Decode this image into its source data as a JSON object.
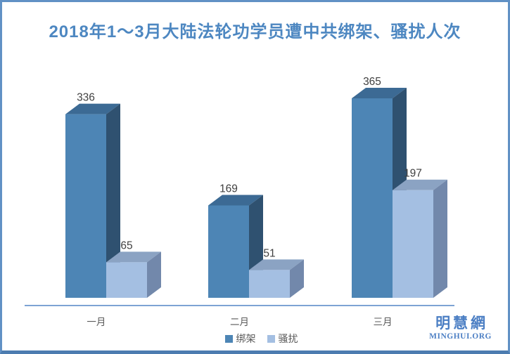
{
  "title": {
    "text": "2018年1～3月大陆法轮功学员遭中共绑架、骚扰人次",
    "color": "#4d87c1"
  },
  "chart_data": {
    "type": "bar",
    "style": "3d-clustered",
    "title": "2018年1～3月大陆法轮功学员遭中共绑架、骚扰人次",
    "categories": [
      "一月",
      "二月",
      "三月"
    ],
    "series": [
      {
        "name": "绑架",
        "values": [
          336,
          169,
          365
        ],
        "color": "#4d85b5",
        "color_top": "#3c6a94",
        "color_side": "#2f5170"
      },
      {
        "name": "骚扰",
        "values": [
          65,
          51,
          197
        ],
        "color": "#a4bfe2",
        "color_top": "#8ba3c3",
        "color_side": "#7288ab"
      }
    ],
    "xlabel": "",
    "ylabel": "",
    "ylim": [
      0,
      365
    ],
    "grid": false,
    "data_labels": true,
    "legend_position": "bottom",
    "value_label_color": "#3f3f3f",
    "category_label_color": "#595959",
    "axis_line_color": "#7da3d4"
  },
  "legend": {
    "items": [
      {
        "label": "绑架",
        "color": "#4d85b5"
      },
      {
        "label": "骚扰",
        "color": "#a4bfe2"
      }
    ]
  },
  "logo": {
    "cn": "明慧網",
    "en": "MINGHUI.ORG",
    "color": "#4c7fc4"
  }
}
